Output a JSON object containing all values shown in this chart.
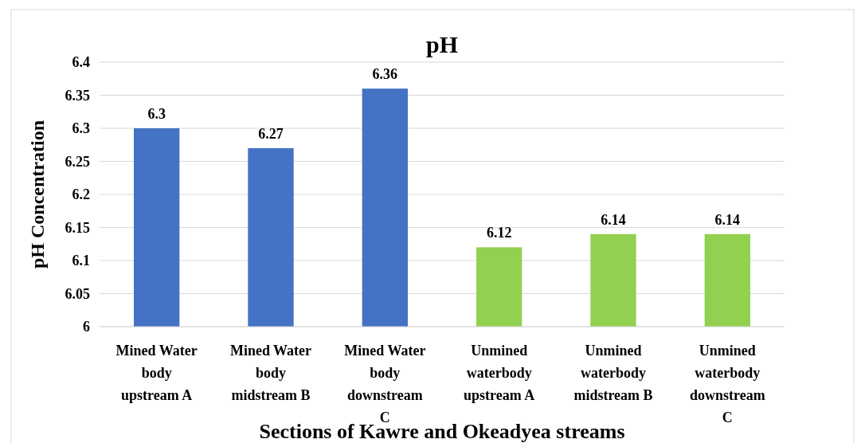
{
  "chart_data": {
    "type": "bar",
    "title": "pH",
    "ylabel": "pH Concentration",
    "xlabel": "Sections of Kawre and Okeadyea streams",
    "categories": [
      "Mined Water body upstream A",
      "Mined Water body midstream B",
      "Mined Water body downstream C",
      "Unmined waterbody upstream A",
      "Unmined waterbody midstream B",
      "Unmined waterbody downstream C"
    ],
    "values": [
      6.3,
      6.27,
      6.36,
      6.12,
      6.14,
      6.14
    ],
    "colors": [
      "#4472c4",
      "#4472c4",
      "#4472c4",
      "#92d050",
      "#92d050",
      "#92d050"
    ],
    "ylim": [
      6,
      6.4
    ],
    "yticks": [
      6,
      {
        "value": 6.05,
        "label": "6.05"
      },
      {
        "value": 6.1,
        "label": "6.1"
      },
      {
        "value": 6.15,
        "label": "6.15"
      },
      {
        "value": 6.2,
        "label": "6.2"
      },
      {
        "value": 6.25,
        "label": "6.25"
      },
      {
        "value": 6.3,
        "label": "6.3"
      },
      {
        "value": 6.35,
        "label": "6.35"
      },
      {
        "value": 6.4,
        "label": "6.4"
      }
    ],
    "grid": "y",
    "data_labels": true
  }
}
